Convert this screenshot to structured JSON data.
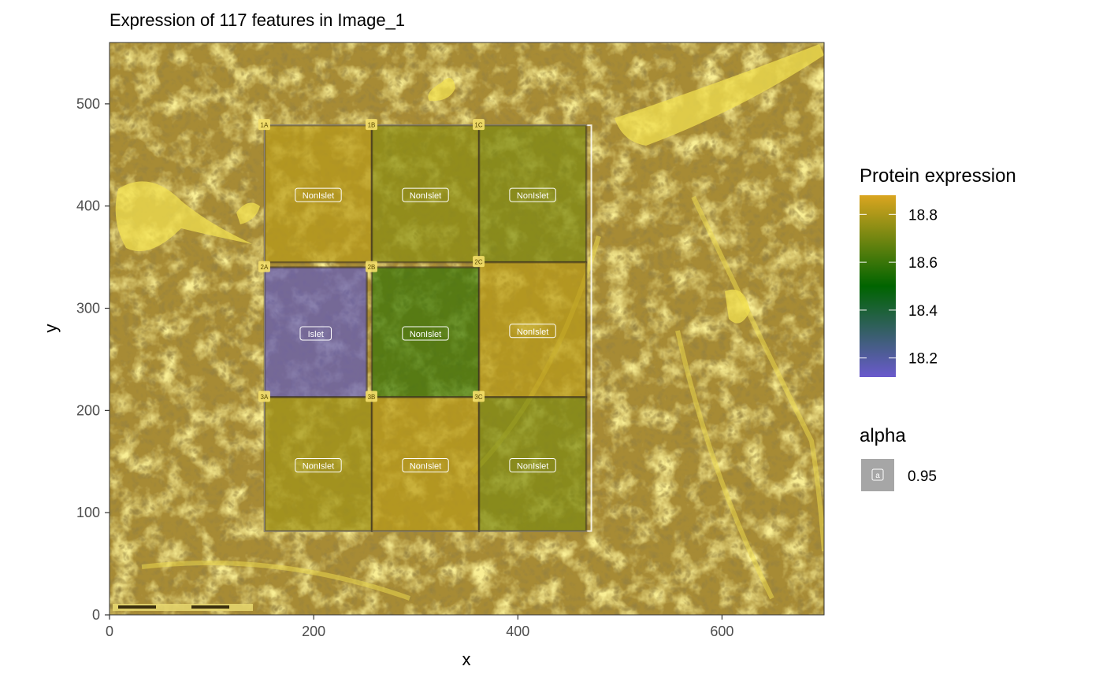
{
  "chart_data": {
    "type": "heatmap",
    "title": "Expression of 117 features in Image_1",
    "xlabel": "x",
    "ylabel": "y",
    "xlim": [
      0,
      700
    ],
    "ylim": [
      0,
      560
    ],
    "x_ticks": [
      0,
      200,
      400,
      600
    ],
    "y_ticks": [
      0,
      100,
      200,
      300,
      400,
      500
    ],
    "grid": false,
    "background_image": "tissue-section-fluorescence",
    "roi_grid_bounds": {
      "x": [
        152,
        472
      ],
      "y": [
        82,
        479
      ]
    },
    "rois": [
      {
        "id": "1A",
        "label": "NonIslet",
        "x": [
          152,
          257
        ],
        "y": [
          345,
          479
        ],
        "value": 18.82
      },
      {
        "id": "1B",
        "label": "NonIslet",
        "x": [
          257,
          362
        ],
        "y": [
          345,
          479
        ],
        "value": 18.74
      },
      {
        "id": "1C",
        "label": "NonIslet",
        "x": [
          362,
          467
        ],
        "y": [
          345,
          479
        ],
        "value": 18.72
      },
      {
        "id": "2A",
        "label": "Islet",
        "x": [
          152,
          252
        ],
        "y": [
          213,
          340
        ],
        "value": 18.15
      },
      {
        "id": "2B",
        "label": "NonIslet",
        "x": [
          257,
          362
        ],
        "y": [
          213,
          340
        ],
        "value": 18.6
      },
      {
        "id": "2C",
        "label": "NonIslet",
        "x": [
          362,
          467
        ],
        "y": [
          213,
          345
        ],
        "value": 18.82
      },
      {
        "id": "3A",
        "label": "NonIslet",
        "x": [
          152,
          257
        ],
        "y": [
          82,
          213
        ],
        "value": 18.78
      },
      {
        "id": "3B",
        "label": "NonIslet",
        "x": [
          257,
          362
        ],
        "y": [
          82,
          213
        ],
        "value": 18.82
      },
      {
        "id": "3C",
        "label": "NonIslet",
        "x": [
          362,
          467
        ],
        "y": [
          82,
          213
        ],
        "value": 18.72
      }
    ],
    "legend": {
      "fill": {
        "title": "Protein expression",
        "range": [
          18.12,
          18.88
        ],
        "ticks": [
          18.2,
          18.4,
          18.6,
          18.8
        ],
        "tick_labels": [
          "18.2",
          "18.4",
          "18.6",
          "18.8"
        ],
        "color_stops": [
          {
            "value": 18.12,
            "color": "#6a5acd"
          },
          {
            "value": 18.5,
            "color": "#006400"
          },
          {
            "value": 18.88,
            "color": "#daa520"
          }
        ]
      },
      "alpha": {
        "title": "alpha",
        "key_glyph": "a",
        "value_label": "0.95"
      },
      "placement": "right"
    }
  },
  "colors": {
    "tissue_base": "#a78b35",
    "tissue_bright": "#f2e050",
    "tissue_dark": "#5e4a14",
    "panel_border": "#333333",
    "roi_outline": "#ffffff"
  }
}
